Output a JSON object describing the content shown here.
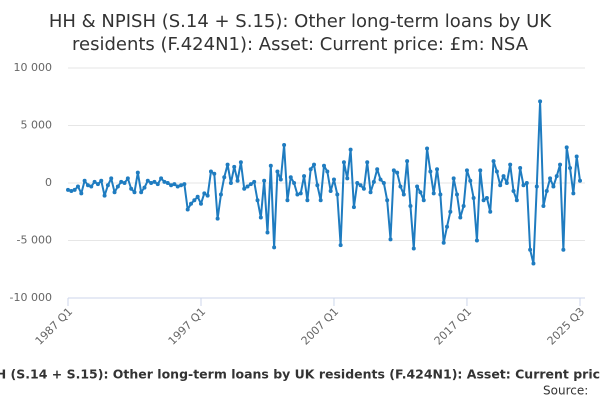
{
  "chart_data": {
    "type": "line",
    "title": [
      "HH & NPISH (S.14 + S.15): Other long-term loans by UK",
      "residents (F.424N1): Asset: Current price: £m: NSA"
    ],
    "source": "Source:",
    "categories": [
      "1987 Q1",
      null,
      null,
      null,
      null,
      null,
      null,
      null,
      null,
      null,
      null,
      null,
      null,
      null,
      null,
      null,
      null,
      null,
      null,
      null,
      null,
      null,
      null,
      null,
      null,
      null,
      null,
      null,
      null,
      null,
      null,
      null,
      null,
      null,
      null,
      null,
      null,
      null,
      null,
      null,
      "1997 Q1",
      null,
      null,
      null,
      null,
      null,
      null,
      null,
      null,
      null,
      null,
      null,
      null,
      null,
      null,
      null,
      null,
      null,
      null,
      null,
      null,
      null,
      null,
      null,
      null,
      null,
      null,
      null,
      null,
      null,
      null,
      null,
      null,
      null,
      null,
      null,
      null,
      null,
      null,
      null,
      "2007 Q1",
      null,
      null,
      null,
      null,
      null,
      null,
      null,
      null,
      null,
      null,
      null,
      null,
      null,
      null,
      null,
      null,
      null,
      null,
      null,
      null,
      null,
      null,
      null,
      null,
      null,
      null,
      null,
      null,
      null,
      null,
      null,
      null,
      null,
      null,
      null,
      null,
      null,
      null,
      null,
      "2017 Q1",
      null,
      null,
      null,
      null,
      null,
      null,
      null,
      null,
      null,
      null,
      null,
      null,
      null,
      null,
      null,
      null,
      null,
      null,
      null,
      null,
      null,
      null,
      null,
      null,
      null,
      null,
      null,
      null,
      null,
      null,
      null,
      null,
      null,
      "2025 Q3"
    ],
    "series": [
      {
        "name": "HH & NPISH (S.14 + S.15): Other long-term loans by UK residents (F.424N1): Asset: Current price: £m: NSA",
        "color": "#1f7cc0",
        "values": [
          -600,
          -700,
          -600,
          -300,
          -900,
          200,
          -200,
          -300,
          100,
          -100,
          200,
          -1100,
          -200,
          400,
          -800,
          -300,
          100,
          0,
          400,
          -500,
          -800,
          900,
          -800,
          -400,
          200,
          0,
          100,
          -100,
          400,
          100,
          0,
          -200,
          -100,
          -300,
          -200,
          -100,
          -2300,
          -1800,
          -1500,
          -1200,
          -1800,
          -900,
          -1100,
          1000,
          800,
          -3100,
          -1000,
          500,
          1600,
          0,
          1400,
          200,
          1800,
          -500,
          -300,
          -100,
          100,
          -1500,
          -3000,
          200,
          -4300,
          1500,
          -5600,
          1000,
          300,
          3300,
          -1500,
          500,
          0,
          -1000,
          -900,
          600,
          -1500,
          1200,
          1600,
          -200,
          -1500,
          1500,
          1000,
          -700,
          300,
          -1000,
          -5400,
          1800,
          400,
          2900,
          -2100,
          0,
          -200,
          -500,
          1800,
          -800,
          100,
          1200,
          300,
          0,
          -1500,
          -4900,
          1100,
          900,
          -300,
          -1000,
          1900,
          -2000,
          -5700,
          -300,
          -800,
          -1500,
          3000,
          1000,
          -900,
          1200,
          -1000,
          -5200,
          -3800,
          -2500,
          400,
          -1000,
          -3000,
          -2000,
          1100,
          200,
          -1300,
          -5000,
          1100,
          -1500,
          -1300,
          -2500,
          1900,
          1000,
          -200,
          600,
          0,
          1600,
          -700,
          -1500,
          1300,
          -200,
          0,
          -5800,
          -7000,
          -300,
          7100,
          -2000,
          -700,
          400,
          -300,
          600,
          1600,
          -5800,
          3100,
          1300,
          -900,
          2300,
          200
        ]
      }
    ],
    "ylim": [
      -10000,
      10000
    ],
    "yticks": [
      {
        "value": -10000,
        "label": "-10 000"
      },
      {
        "value": -5000,
        "label": "-5 000"
      },
      0,
      {
        "value": 5000,
        "label": "5 000"
      },
      {
        "value": 10000,
        "label": "10 000"
      }
    ],
    "grid": true,
    "markers": true
  }
}
